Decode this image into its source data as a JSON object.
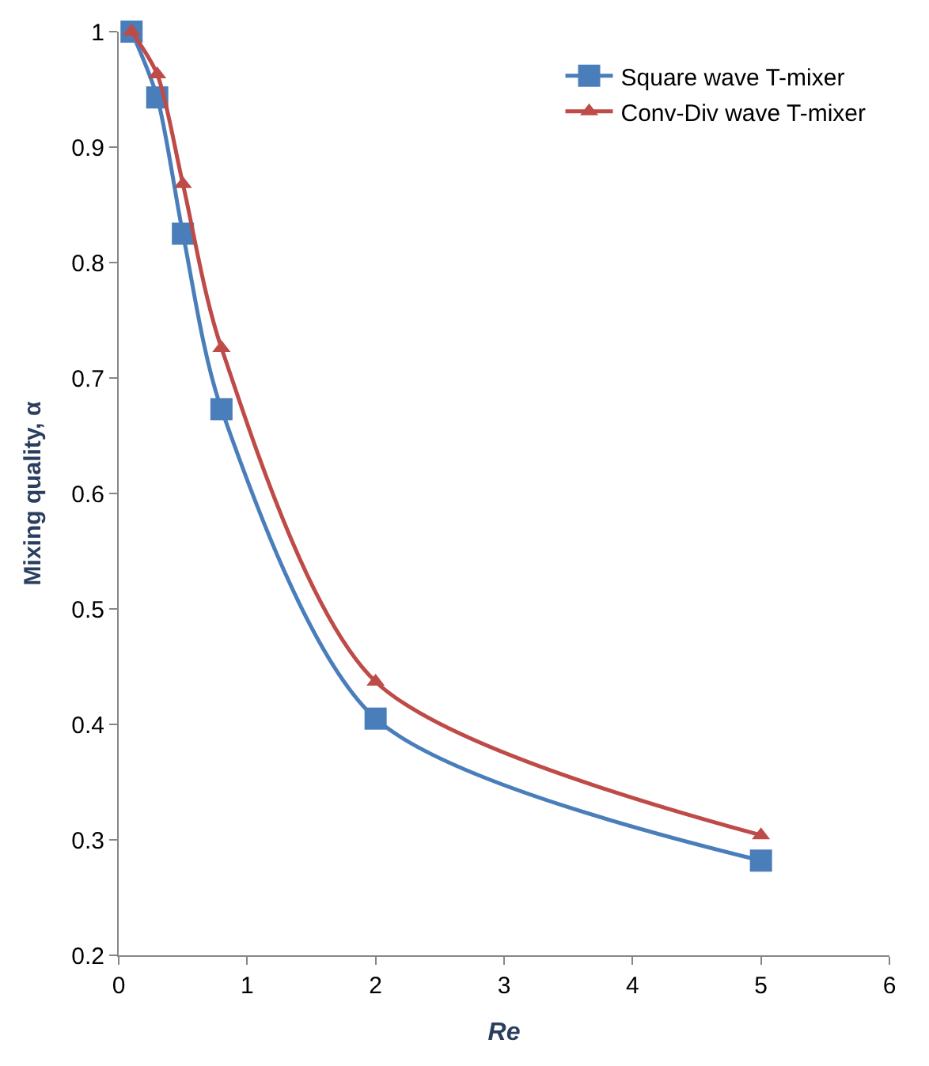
{
  "chart_data": {
    "type": "line",
    "xlabel": "Re",
    "ylabel": "Mixing quality, α",
    "series": [
      {
        "name": "Square wave T-mixer",
        "color": "#4a7ebb",
        "marker": "square",
        "x": [
          0.1,
          0.3,
          0.5,
          0.8,
          2,
          5
        ],
        "values": [
          1.0,
          0.943,
          0.825,
          0.673,
          0.405,
          0.282
        ]
      },
      {
        "name": "Conv-Div wave T-mixer",
        "color": "#be4b48",
        "marker": "triangle",
        "x": [
          0.1,
          0.3,
          0.5,
          0.8,
          2,
          5
        ],
        "values": [
          1.0,
          0.963,
          0.868,
          0.726,
          0.437,
          0.304
        ]
      }
    ],
    "xlim": [
      0,
      6
    ],
    "xticks": [
      0,
      1,
      2,
      3,
      4,
      5,
      6
    ],
    "ylim": [
      0.2,
      1
    ],
    "yticks": [
      0.2,
      0.3,
      0.4,
      0.5,
      0.6,
      0.7,
      0.8,
      0.9,
      1
    ],
    "legend": "top right",
    "line_style": "solid"
  }
}
